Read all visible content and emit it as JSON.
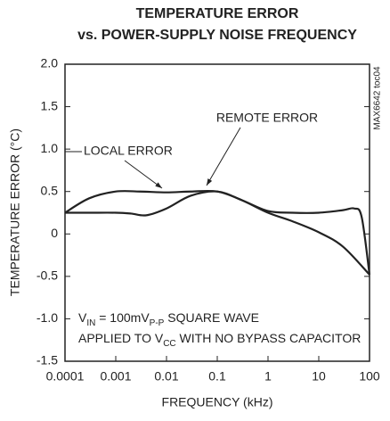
{
  "chart_data": {
    "type": "line",
    "title": [
      "TEMPERATURE ERROR",
      "vs. POWER-SUPPLY NOISE FREQUENCY"
    ],
    "x_label": "FREQUENCY (kHz)",
    "y_label": "TEMPERATURE ERROR (°C)",
    "side_label": "MAX6642 toc04",
    "log_x": true,
    "grid": false,
    "xlim": [
      0.0001,
      100
    ],
    "xticks": [
      0.0001,
      0.001,
      0.01,
      0.1,
      1,
      10,
      100
    ],
    "ylim": [
      -1.5,
      2.0
    ],
    "yticks": [
      {
        "value": -1.5,
        "label": "-1.5"
      },
      {
        "value": -1,
        "label": "-1.0"
      },
      -0.5,
      0,
      0.5,
      {
        "value": 1,
        "label": "1.0"
      },
      1.5,
      {
        "value": 2,
        "label": "2.0"
      }
    ],
    "series": [
      {
        "name": "REMOTE ERROR",
        "color": "#222222",
        "x": [
          0.0001,
          0.0003,
          0.001,
          0.003,
          0.01,
          0.03,
          0.1,
          0.3,
          1,
          3,
          10,
          30,
          100
        ],
        "values": [
          0.25,
          0.42,
          0.5,
          0.5,
          0.49,
          0.5,
          0.5,
          0.4,
          0.25,
          0.15,
          0.02,
          -0.15,
          -0.48
        ]
      },
      {
        "name": "LOCAL ERROR",
        "color": "#222222",
        "x": [
          0.0001,
          0.0003,
          0.001,
          0.002,
          0.004,
          0.01,
          0.03,
          0.1,
          0.3,
          1,
          3,
          10,
          30,
          50,
          70,
          100
        ],
        "values": [
          0.25,
          0.25,
          0.25,
          0.24,
          0.22,
          0.3,
          0.45,
          0.5,
          0.4,
          0.27,
          0.25,
          0.25,
          0.28,
          0.3,
          0.2,
          -0.48
        ]
      }
    ],
    "note": [
      [
        {
          "text": "V"
        },
        {
          "text": "IN",
          "sub": true
        },
        {
          "text": " = 100mV"
        },
        {
          "text": "P-P",
          "sub": true
        },
        {
          "text": " SQUARE WAVE"
        }
      ],
      [
        {
          "text": "APPLIED TO V"
        },
        {
          "text": "CC",
          "sub": true
        },
        {
          "text": " WITH NO BYPASS CAPACITOR"
        }
      ]
    ]
  }
}
